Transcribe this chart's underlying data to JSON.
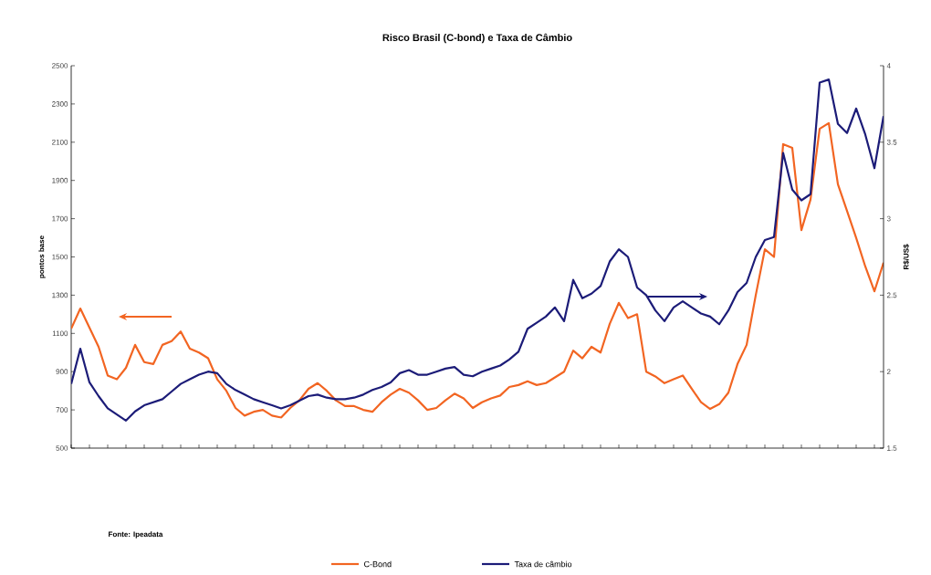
{
  "chart_data": {
    "type": "line",
    "title": "Risco Brasil (C-bond) e Taxa de Câmbio",
    "ylabel": "pontos base",
    "y2label": "R$/US$",
    "annotations": [
      "Fonte: Ipeadata"
    ],
    "categories": [
      null,
      null,
      null,
      null,
      null,
      null,
      null,
      null,
      null,
      null,
      null,
      null,
      null,
      null,
      null,
      null,
      null,
      null,
      null,
      null,
      null,
      null,
      null,
      null,
      null,
      null,
      null,
      null,
      null,
      null,
      null,
      null,
      null,
      null,
      null,
      null,
      null,
      null,
      null,
      null,
      null,
      null,
      null,
      null,
      null,
      null,
      null,
      null,
      null,
      null,
      null,
      null,
      null,
      null,
      null,
      null,
      null,
      null,
      null,
      null,
      null,
      null,
      null,
      null,
      null,
      null,
      null,
      null,
      null,
      null,
      null,
      null,
      null,
      null,
      null,
      null,
      null,
      null,
      null,
      null,
      null,
      null,
      null,
      null,
      null,
      null,
      null,
      null,
      null,
      null
    ],
    "series": [
      {
        "name": "C-Bond",
        "color": "#f26522",
        "values": [
          1125,
          1230,
          1130,
          1030,
          880,
          860,
          920,
          1040,
          950,
          940,
          1040,
          1060,
          1110,
          1020,
          1000,
          970,
          860,
          800,
          710,
          670,
          690,
          700,
          670,
          660,
          710,
          750,
          810,
          840,
          800,
          750,
          720,
          720,
          700,
          690,
          740,
          780,
          810,
          790,
          750,
          700,
          710,
          750,
          785,
          760,
          710,
          740,
          760,
          775,
          820,
          830,
          850,
          830,
          840,
          870,
          900,
          1010,
          970,
          1030,
          1000,
          1150,
          1260,
          1180,
          1200,
          900,
          875,
          840,
          860,
          880,
          810,
          740,
          705,
          730,
          790,
          940,
          1040,
          1300,
          1540,
          1500,
          2090,
          2070,
          1640,
          1800,
          2170,
          2200,
          1880,
          1740,
          1600,
          1450,
          1320,
          1470
        ]
      },
      {
        "name": "Taxa de câmbio",
        "color": "#1c1c78",
        "axis": "y2",
        "values": [
          1.92,
          2.15,
          1.93,
          1.84,
          1.76,
          1.72,
          1.68,
          1.74,
          1.78,
          1.8,
          1.82,
          1.87,
          1.92,
          1.95,
          1.98,
          2.0,
          1.99,
          1.92,
          1.88,
          1.85,
          1.82,
          1.8,
          1.78,
          1.76,
          1.78,
          1.81,
          1.84,
          1.85,
          1.83,
          1.82,
          1.82,
          1.83,
          1.85,
          1.88,
          1.9,
          1.93,
          1.99,
          2.01,
          1.98,
          1.98,
          2.0,
          2.02,
          2.03,
          1.98,
          1.97,
          2.0,
          2.02,
          2.04,
          2.08,
          2.13,
          2.28,
          2.32,
          2.36,
          2.42,
          2.33,
          2.6,
          2.48,
          2.51,
          2.56,
          2.72,
          2.8,
          2.75,
          2.55,
          2.5,
          2.4,
          2.33,
          2.42,
          2.46,
          2.42,
          2.38,
          2.36,
          2.31,
          2.4,
          2.52,
          2.58,
          2.75,
          2.86,
          2.88,
          3.43,
          3.19,
          3.12,
          3.16,
          3.89,
          3.91,
          3.62,
          3.56,
          3.72,
          3.55,
          3.33,
          3.67
        ]
      }
    ],
    "ylim": [
      500,
      2500
    ],
    "yticks": [
      500,
      700,
      900,
      1100,
      1300,
      1500,
      1700,
      1900,
      2100,
      2300,
      2500
    ],
    "y2lim": [
      1.5,
      4
    ],
    "y2ticks": [
      1.5,
      2,
      2.5,
      3,
      3.5,
      4
    ],
    "legend": "bottom",
    "grid": false,
    "marker": "none",
    "line_style": "solid"
  }
}
